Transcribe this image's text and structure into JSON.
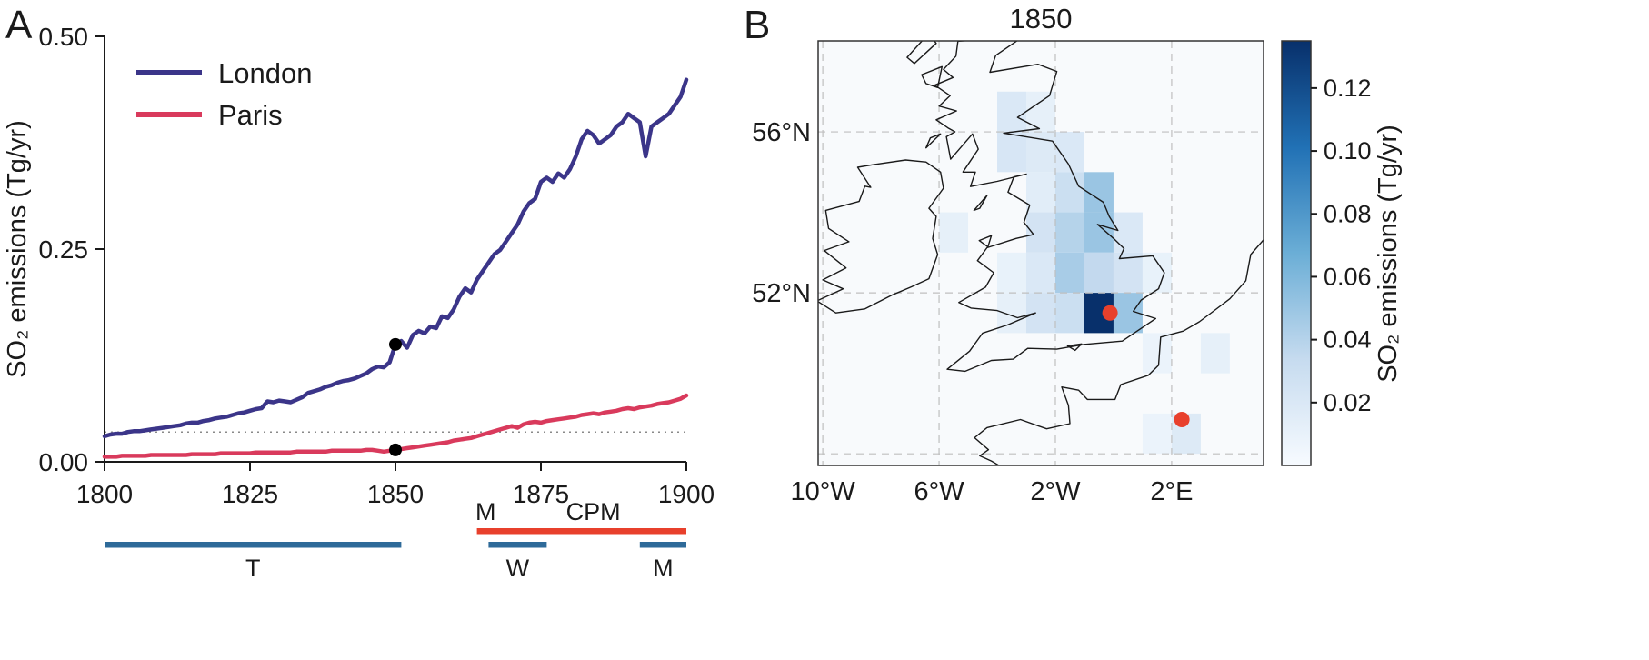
{
  "panels": {
    "a": {
      "letter": "A"
    },
    "b": {
      "letter": "B"
    }
  },
  "chart_data": [
    {
      "type": "line",
      "title": "",
      "xlabel": "",
      "ylabel": "SO₂ emissions (Tg/yr)",
      "xlim": [
        1800,
        1900
      ],
      "ylim": [
        0,
        0.5
      ],
      "xticks": [
        1800,
        1825,
        1850,
        1875,
        1900
      ],
      "xtick_labels": [
        "1800",
        "1825",
        "1850",
        "1875",
        "1900"
      ],
      "yticks": [
        0,
        0.25,
        0.5
      ],
      "ytick_labels": [
        "0.00",
        "0.25",
        "0.50"
      ],
      "legend_position": "top-left",
      "reference_line_y": 0.035,
      "marker_year": 1850,
      "marker_color": "#000000",
      "x": [
        1800,
        1801,
        1802,
        1803,
        1804,
        1805,
        1806,
        1807,
        1808,
        1809,
        1810,
        1811,
        1812,
        1813,
        1814,
        1815,
        1816,
        1817,
        1818,
        1819,
        1820,
        1821,
        1822,
        1823,
        1824,
        1825,
        1826,
        1827,
        1828,
        1829,
        1830,
        1831,
        1832,
        1833,
        1834,
        1835,
        1836,
        1837,
        1838,
        1839,
        1840,
        1841,
        1842,
        1843,
        1844,
        1845,
        1846,
        1847,
        1848,
        1849,
        1850,
        1851,
        1852,
        1853,
        1854,
        1855,
        1856,
        1857,
        1858,
        1859,
        1860,
        1861,
        1862,
        1863,
        1864,
        1865,
        1866,
        1867,
        1868,
        1869,
        1870,
        1871,
        1872,
        1873,
        1874,
        1875,
        1876,
        1877,
        1878,
        1879,
        1880,
        1881,
        1882,
        1883,
        1884,
        1885,
        1886,
        1887,
        1888,
        1889,
        1890,
        1891,
        1892,
        1893,
        1894,
        1895,
        1896,
        1897,
        1898,
        1899,
        1900
      ],
      "series": [
        {
          "name": "London",
          "color": "#3b3589",
          "values": [
            0.03,
            0.032,
            0.033,
            0.033,
            0.035,
            0.036,
            0.036,
            0.037,
            0.038,
            0.039,
            0.04,
            0.041,
            0.042,
            0.043,
            0.045,
            0.046,
            0.046,
            0.048,
            0.049,
            0.051,
            0.052,
            0.053,
            0.055,
            0.057,
            0.058,
            0.06,
            0.062,
            0.063,
            0.071,
            0.07,
            0.072,
            0.071,
            0.07,
            0.073,
            0.076,
            0.081,
            0.083,
            0.085,
            0.088,
            0.09,
            0.093,
            0.095,
            0.096,
            0.098,
            0.101,
            0.104,
            0.109,
            0.112,
            0.111,
            0.117,
            0.138,
            0.142,
            0.134,
            0.149,
            0.154,
            0.151,
            0.159,
            0.157,
            0.171,
            0.169,
            0.179,
            0.194,
            0.204,
            0.199,
            0.214,
            0.224,
            0.234,
            0.244,
            0.249,
            0.259,
            0.269,
            0.279,
            0.294,
            0.304,
            0.309,
            0.329,
            0.334,
            0.329,
            0.339,
            0.334,
            0.344,
            0.359,
            0.379,
            0.389,
            0.384,
            0.374,
            0.379,
            0.384,
            0.394,
            0.399,
            0.409,
            0.404,
            0.399,
            0.359,
            0.394,
            0.399,
            0.404,
            0.409,
            0.419,
            0.429,
            0.449
          ]
        },
        {
          "name": "Paris",
          "color": "#d93a5c",
          "values": [
            0.006,
            0.006,
            0.006,
            0.007,
            0.007,
            0.007,
            0.007,
            0.007,
            0.008,
            0.008,
            0.008,
            0.008,
            0.008,
            0.008,
            0.008,
            0.009,
            0.009,
            0.009,
            0.009,
            0.009,
            0.01,
            0.01,
            0.01,
            0.01,
            0.01,
            0.01,
            0.011,
            0.011,
            0.011,
            0.011,
            0.011,
            0.011,
            0.011,
            0.012,
            0.012,
            0.012,
            0.012,
            0.012,
            0.012,
            0.013,
            0.013,
            0.013,
            0.013,
            0.013,
            0.013,
            0.014,
            0.014,
            0.013,
            0.012,
            0.013,
            0.014,
            0.015,
            0.016,
            0.017,
            0.018,
            0.019,
            0.02,
            0.021,
            0.022,
            0.023,
            0.025,
            0.026,
            0.027,
            0.028,
            0.03,
            0.032,
            0.034,
            0.036,
            0.038,
            0.04,
            0.042,
            0.04,
            0.044,
            0.046,
            0.047,
            0.046,
            0.048,
            0.049,
            0.05,
            0.051,
            0.052,
            0.053,
            0.055,
            0.056,
            0.057,
            0.056,
            0.058,
            0.059,
            0.06,
            0.062,
            0.063,
            0.062,
            0.064,
            0.065,
            0.066,
            0.068,
            0.069,
            0.07,
            0.072,
            0.074,
            0.078
          ]
        }
      ],
      "annotation_bars": [
        {
          "name": "T",
          "start": 1800,
          "end": 1851,
          "row": "lower",
          "color": "#2e6a99",
          "labels": [
            {
              "text": "T",
              "year": 1825.5,
              "placement": "below"
            }
          ]
        },
        {
          "name": "CPM",
          "start": 1864,
          "end": 1900,
          "row": "upper",
          "color": "#e8402c",
          "labels": [
            {
              "text": "M",
              "year": 1865.5,
              "placement": "above"
            },
            {
              "text": "CPM",
              "year": 1884,
              "placement": "above"
            }
          ]
        },
        {
          "name": "W",
          "start": 1866,
          "end": 1876,
          "row": "lower",
          "color": "#2e6a99",
          "labels": [
            {
              "text": "W",
              "year": 1871,
              "placement": "below"
            }
          ]
        },
        {
          "name": "M",
          "start": 1892,
          "end": 1900,
          "row": "lower",
          "color": "#2e6a99",
          "labels": [
            {
              "text": "M",
              "year": 1896,
              "placement": "below"
            }
          ]
        }
      ]
    },
    {
      "type": "heatmap",
      "title": "1850",
      "colorbar_label": "SO₂ emissions (Tg/yr)",
      "colorbar_ticks": [
        0.02,
        0.04,
        0.06,
        0.08,
        0.1,
        0.12
      ],
      "vmin": 0,
      "vmax": 0.135,
      "colormap": [
        "#f7fbff",
        "#c6dbef",
        "#6baed6",
        "#2171b5",
        "#08306b"
      ],
      "background": "#f8fafc",
      "lon_range": [
        -10.16,
        5.16
      ],
      "lat_range": [
        47.71,
        58.26
      ],
      "lon_gridlines": [
        -10,
        -6,
        -2,
        2
      ],
      "lat_gridlines": [
        56,
        52,
        48
      ],
      "lon_ticks": [
        {
          "value": -10,
          "label": "10°W"
        },
        {
          "value": -6,
          "label": "6°W"
        },
        {
          "value": -2,
          "label": "2°W"
        },
        {
          "value": 2,
          "label": "2°E"
        }
      ],
      "lat_ticks": [
        {
          "value": 56,
          "label": "56°N"
        },
        {
          "value": 52,
          "label": "52°N"
        }
      ],
      "cells": [
        {
          "lon": -4,
          "lat": 56,
          "v": 0.02
        },
        {
          "lon": -3,
          "lat": 56,
          "v": 0.012
        },
        {
          "lon": -4,
          "lat": 55,
          "v": 0.022
        },
        {
          "lon": -3,
          "lat": 55,
          "v": 0.018
        },
        {
          "lon": -2,
          "lat": 55,
          "v": 0.02
        },
        {
          "lon": -3,
          "lat": 54,
          "v": 0.015
        },
        {
          "lon": -2,
          "lat": 54,
          "v": 0.03
        },
        {
          "lon": -1,
          "lat": 54,
          "v": 0.05
        },
        {
          "lon": -3,
          "lat": 53,
          "v": 0.025
        },
        {
          "lon": -2,
          "lat": 53,
          "v": 0.04
        },
        {
          "lon": -1,
          "lat": 53,
          "v": 0.05
        },
        {
          "lon": 0,
          "lat": 53,
          "v": 0.02
        },
        {
          "lon": -4,
          "lat": 52,
          "v": 0.01
        },
        {
          "lon": -3,
          "lat": 52,
          "v": 0.02
        },
        {
          "lon": -2,
          "lat": 52,
          "v": 0.045
        },
        {
          "lon": -1,
          "lat": 52,
          "v": 0.035
        },
        {
          "lon": 0,
          "lat": 52,
          "v": 0.025
        },
        {
          "lon": -4,
          "lat": 51,
          "v": 0.012
        },
        {
          "lon": -3,
          "lat": 51,
          "v": 0.025
        },
        {
          "lon": -2,
          "lat": 51,
          "v": 0.03
        },
        {
          "lon": -1,
          "lat": 51,
          "v": 0.135
        },
        {
          "lon": 0,
          "lat": 51,
          "v": 0.05
        },
        {
          "lon": -6,
          "lat": 53,
          "v": 0.012
        },
        {
          "lon": 1,
          "lat": 52,
          "v": 0.01
        },
        {
          "lon": 1,
          "lat": 50,
          "v": 0.008
        },
        {
          "lon": 3,
          "lat": 50,
          "v": 0.012
        },
        {
          "lon": 2,
          "lat": 48,
          "v": 0.018
        },
        {
          "lon": 1,
          "lat": 48,
          "v": 0.008
        }
      ],
      "points": [
        {
          "name": "London",
          "lon": -0.12,
          "lat": 51.5
        },
        {
          "name": "Paris",
          "lon": 2.35,
          "lat": 48.85
        }
      ],
      "point_color": "#e8402c"
    }
  ]
}
